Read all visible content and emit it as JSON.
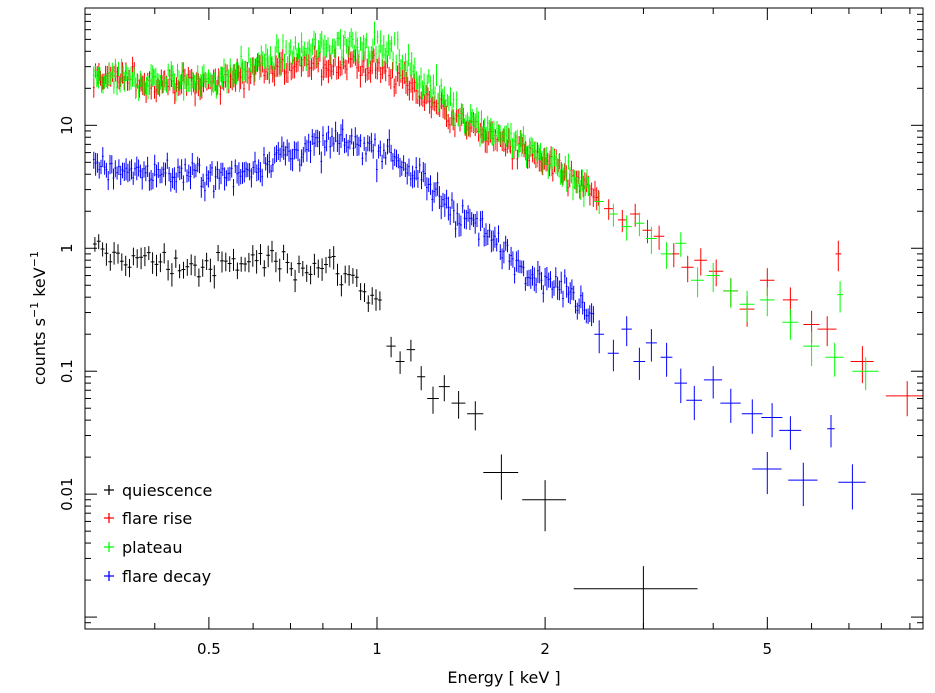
{
  "chart_data": {
    "type": "scatter",
    "title": "",
    "xlabel": "Energy [ keV ]",
    "ylabel_main": "counts s",
    "ylabel_exp1": "−1",
    "ylabel_unit": " keV",
    "ylabel_exp2": "−1",
    "x_scale": "log",
    "y_scale": "log",
    "xlim": [
      0.3,
      9.5
    ],
    "ylim": [
      0.0008,
      90
    ],
    "x_ticks": [
      {
        "value": 0.5,
        "label": "0.5"
      },
      {
        "value": 1,
        "label": "1"
      },
      {
        "value": 2,
        "label": "2"
      },
      {
        "value": 5,
        "label": "5"
      }
    ],
    "y_ticks": [
      {
        "value": 0.01,
        "label": "0.01"
      },
      {
        "value": 0.1,
        "label": "0.1"
      },
      {
        "value": 1,
        "label": "1"
      },
      {
        "value": 10,
        "label": "10"
      }
    ],
    "legend_position": "bottom-left",
    "series": [
      {
        "name": "quiescence",
        "color": "#000000",
        "low_energy": {
          "x_start": 0.31,
          "x_end": 1.02,
          "count": 75,
          "trend": [
            [
              0.31,
              0.92
            ],
            [
              0.5,
              0.68
            ],
            [
              0.62,
              0.82
            ],
            [
              0.85,
              0.7
            ],
            [
              1.02,
              0.36
            ]
          ],
          "scatter": 0.13
        },
        "points": [
          {
            "x": 1.06,
            "y": 0.16,
            "xerr": 0.02,
            "yerr": 0.03
          },
          {
            "x": 1.1,
            "y": 0.12,
            "xerr": 0.02,
            "yerr": 0.025
          },
          {
            "x": 1.15,
            "y": 0.15,
            "xerr": 0.02,
            "yerr": 0.03
          },
          {
            "x": 1.2,
            "y": 0.09,
            "xerr": 0.02,
            "yerr": 0.02
          },
          {
            "x": 1.26,
            "y": 0.06,
            "xerr": 0.03,
            "yerr": 0.015
          },
          {
            "x": 1.32,
            "y": 0.075,
            "xerr": 0.03,
            "yerr": 0.018
          },
          {
            "x": 1.4,
            "y": 0.055,
            "xerr": 0.04,
            "yerr": 0.014
          },
          {
            "x": 1.5,
            "y": 0.045,
            "xerr": 0.05,
            "yerr": 0.012
          },
          {
            "x": 1.67,
            "y": 0.015,
            "xerr": 0.12,
            "yerr": 0.006
          },
          {
            "x": 2.0,
            "y": 0.009,
            "xerr": 0.18,
            "yerr": 0.004
          },
          {
            "x": 3.0,
            "y": 0.0017,
            "xerr": 0.75,
            "yerr": 0.0009
          }
        ]
      },
      {
        "name": "flare rise",
        "color": "#ff0000",
        "low_energy": {
          "x_start": 0.31,
          "x_end": 2.5,
          "count": 300,
          "trend": [
            [
              0.31,
              24
            ],
            [
              0.5,
              22
            ],
            [
              0.62,
              30
            ],
            [
              0.9,
              32
            ],
            [
              1.05,
              28
            ],
            [
              1.4,
              11
            ],
            [
              2.0,
              5
            ],
            [
              2.5,
              2.6
            ]
          ],
          "scatter": 0.11
        },
        "points": [
          {
            "x": 2.6,
            "y": 2.1,
            "xerr": 0.05,
            "yerr": 0.4
          },
          {
            "x": 2.75,
            "y": 1.7,
            "xerr": 0.05,
            "yerr": 0.35
          },
          {
            "x": 2.9,
            "y": 1.9,
            "xerr": 0.06,
            "yerr": 0.4
          },
          {
            "x": 3.05,
            "y": 1.4,
            "xerr": 0.06,
            "yerr": 0.3
          },
          {
            "x": 3.2,
            "y": 1.25,
            "xerr": 0.07,
            "yerr": 0.28
          },
          {
            "x": 3.4,
            "y": 0.9,
            "xerr": 0.08,
            "yerr": 0.2
          },
          {
            "x": 3.6,
            "y": 0.7,
            "xerr": 0.09,
            "yerr": 0.17
          },
          {
            "x": 3.8,
            "y": 0.8,
            "xerr": 0.1,
            "yerr": 0.2
          },
          {
            "x": 4.05,
            "y": 0.65,
            "xerr": 0.12,
            "yerr": 0.16
          },
          {
            "x": 4.3,
            "y": 0.45,
            "xerr": 0.13,
            "yerr": 0.12
          },
          {
            "x": 4.6,
            "y": 0.32,
            "xerr": 0.14,
            "yerr": 0.09
          },
          {
            "x": 5.0,
            "y": 0.55,
            "xerr": 0.15,
            "yerr": 0.14
          },
          {
            "x": 5.5,
            "y": 0.38,
            "xerr": 0.17,
            "yerr": 0.1
          },
          {
            "x": 6.0,
            "y": 0.24,
            "xerr": 0.2,
            "yerr": 0.07
          },
          {
            "x": 6.4,
            "y": 0.22,
            "xerr": 0.25,
            "yerr": 0.06
          },
          {
            "x": 6.7,
            "y": 0.9,
            "xerr": 0.08,
            "yerr": 0.25
          },
          {
            "x": 7.4,
            "y": 0.12,
            "xerr": 0.35,
            "yerr": 0.04
          },
          {
            "x": 8.9,
            "y": 0.063,
            "xerr": 0.75,
            "yerr": 0.02
          }
        ]
      },
      {
        "name": "plateau",
        "color": "#00ff00",
        "low_energy": {
          "x_start": 0.31,
          "x_end": 2.4,
          "count": 320,
          "trend": [
            [
              0.31,
              23
            ],
            [
              0.5,
              23
            ],
            [
              0.65,
              35
            ],
            [
              0.9,
              48
            ],
            [
              1.05,
              42
            ],
            [
              1.4,
              13
            ],
            [
              2.0,
              5.5
            ],
            [
              2.4,
              3.0
            ]
          ],
          "scatter": 0.12
        },
        "points": [
          {
            "x": 2.5,
            "y": 2.4,
            "xerr": 0.05,
            "yerr": 0.5
          },
          {
            "x": 2.65,
            "y": 1.9,
            "xerr": 0.05,
            "yerr": 0.4
          },
          {
            "x": 2.8,
            "y": 1.5,
            "xerr": 0.06,
            "yerr": 0.35
          },
          {
            "x": 2.95,
            "y": 1.6,
            "xerr": 0.06,
            "yerr": 0.35
          },
          {
            "x": 3.1,
            "y": 1.2,
            "xerr": 0.07,
            "yerr": 0.3
          },
          {
            "x": 3.3,
            "y": 0.9,
            "xerr": 0.08,
            "yerr": 0.22
          },
          {
            "x": 3.5,
            "y": 1.1,
            "xerr": 0.08,
            "yerr": 0.25
          },
          {
            "x": 3.75,
            "y": 0.55,
            "xerr": 0.1,
            "yerr": 0.15
          },
          {
            "x": 4.0,
            "y": 0.6,
            "xerr": 0.11,
            "yerr": 0.16
          },
          {
            "x": 4.3,
            "y": 0.45,
            "xerr": 0.13,
            "yerr": 0.12
          },
          {
            "x": 4.6,
            "y": 0.35,
            "xerr": 0.14,
            "yerr": 0.1
          },
          {
            "x": 5.0,
            "y": 0.38,
            "xerr": 0.15,
            "yerr": 0.1
          },
          {
            "x": 5.5,
            "y": 0.25,
            "xerr": 0.18,
            "yerr": 0.07
          },
          {
            "x": 6.0,
            "y": 0.16,
            "xerr": 0.2,
            "yerr": 0.05
          },
          {
            "x": 6.6,
            "y": 0.13,
            "xerr": 0.25,
            "yerr": 0.04
          },
          {
            "x": 6.75,
            "y": 0.42,
            "xerr": 0.08,
            "yerr": 0.12
          },
          {
            "x": 7.5,
            "y": 0.1,
            "xerr": 0.4,
            "yerr": 0.03
          }
        ]
      },
      {
        "name": "flare decay",
        "color": "#0000ff",
        "low_energy": {
          "x_start": 0.31,
          "x_end": 2.45,
          "count": 280,
          "trend": [
            [
              0.31,
              4.5
            ],
            [
              0.45,
              4.0
            ],
            [
              0.55,
              3.8
            ],
            [
              0.65,
              5.5
            ],
            [
              0.85,
              7.5
            ],
            [
              1.05,
              6.0
            ],
            [
              1.4,
              2.0
            ],
            [
              1.8,
              0.75
            ],
            [
              2.2,
              0.45
            ],
            [
              2.45,
              0.3
            ]
          ],
          "scatter": 0.13
        },
        "points": [
          {
            "x": 2.5,
            "y": 0.2,
            "xerr": 0.05,
            "yerr": 0.06
          },
          {
            "x": 2.65,
            "y": 0.14,
            "xerr": 0.06,
            "yerr": 0.04
          },
          {
            "x": 2.8,
            "y": 0.22,
            "xerr": 0.06,
            "yerr": 0.06
          },
          {
            "x": 2.95,
            "y": 0.12,
            "xerr": 0.07,
            "yerr": 0.035
          },
          {
            "x": 3.1,
            "y": 0.17,
            "xerr": 0.07,
            "yerr": 0.05
          },
          {
            "x": 3.3,
            "y": 0.13,
            "xerr": 0.08,
            "yerr": 0.04
          },
          {
            "x": 3.5,
            "y": 0.08,
            "xerr": 0.09,
            "yerr": 0.025
          },
          {
            "x": 3.7,
            "y": 0.058,
            "xerr": 0.12,
            "yerr": 0.018
          },
          {
            "x": 4.0,
            "y": 0.085,
            "xerr": 0.15,
            "yerr": 0.025
          },
          {
            "x": 4.3,
            "y": 0.055,
            "xerr": 0.18,
            "yerr": 0.017
          },
          {
            "x": 4.7,
            "y": 0.045,
            "xerr": 0.2,
            "yerr": 0.014
          },
          {
            "x": 5.1,
            "y": 0.042,
            "xerr": 0.22,
            "yerr": 0.013
          },
          {
            "x": 5.5,
            "y": 0.033,
            "xerr": 0.25,
            "yerr": 0.01
          },
          {
            "x": 5.0,
            "y": 0.016,
            "xerr": 0.3,
            "yerr": 0.006
          },
          {
            "x": 5.8,
            "y": 0.013,
            "xerr": 0.35,
            "yerr": 0.005
          },
          {
            "x": 6.5,
            "y": 0.034,
            "xerr": 0.1,
            "yerr": 0.01
          },
          {
            "x": 7.1,
            "y": 0.0125,
            "xerr": 0.4,
            "yerr": 0.005
          }
        ]
      }
    ]
  }
}
